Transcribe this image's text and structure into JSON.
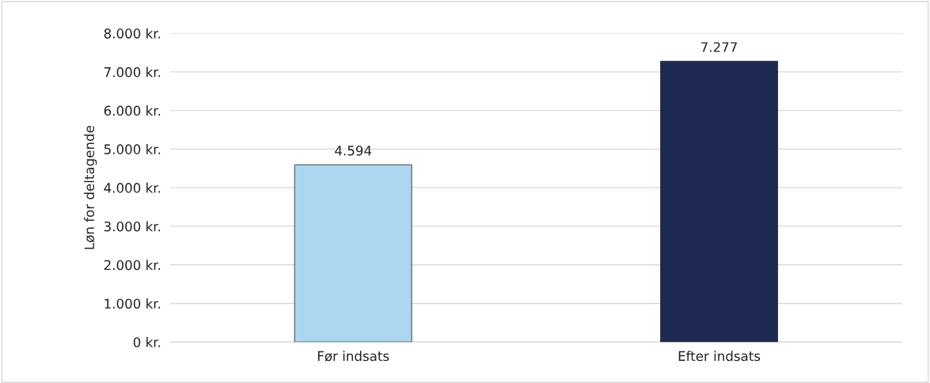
{
  "chart_data": {
    "type": "bar",
    "ylabel": "Løn for deltagende",
    "categories": [
      "Før indsats",
      "Efter indsats"
    ],
    "values": [
      4594,
      7277
    ],
    "colors": [
      "#abd6f0",
      "#1e2952"
    ],
    "value_labels": [
      "4.594",
      "7.277"
    ],
    "ylim": [
      0,
      8000
    ],
    "yticks": [
      {
        "value": 0,
        "label": "0 kr."
      },
      {
        "value": 1000,
        "label": "1.000 kr."
      },
      {
        "value": 2000,
        "label": "2.000 kr."
      },
      {
        "value": 3000,
        "label": "3.000 kr."
      },
      {
        "value": 4000,
        "label": "4.000 kr."
      },
      {
        "value": 5000,
        "label": "5.000 kr."
      },
      {
        "value": 6000,
        "label": "6.000 kr."
      },
      {
        "value": 7000,
        "label": "7.000 kr."
      },
      {
        "value": 8000,
        "label": "8.000 kr."
      }
    ],
    "grid": "y"
  }
}
